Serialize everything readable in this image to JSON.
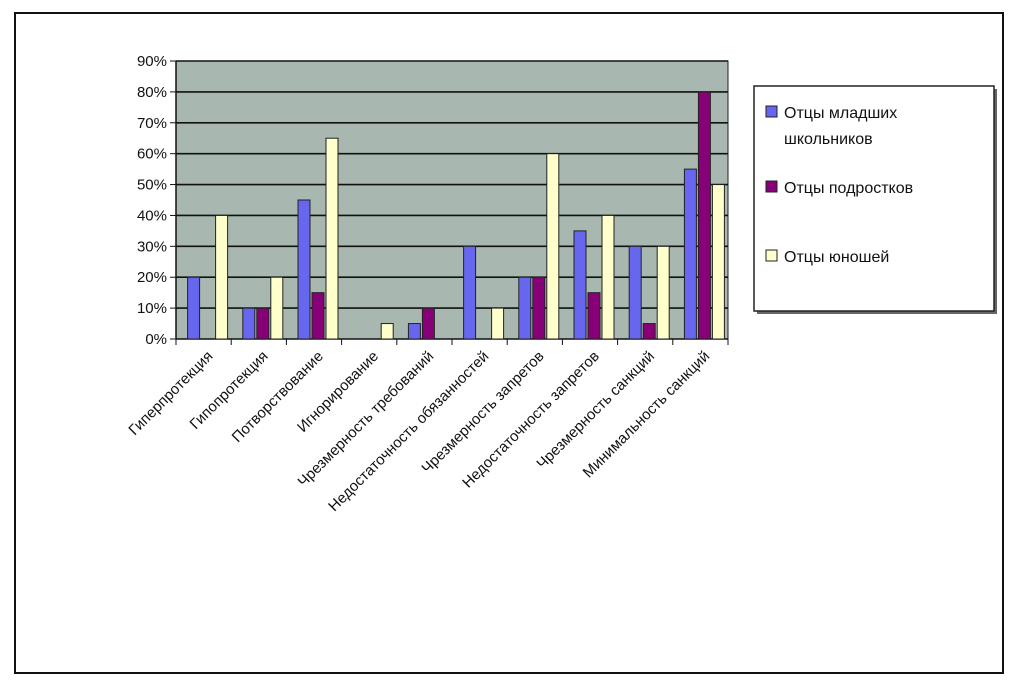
{
  "chart_data": {
    "type": "bar",
    "categories": [
      "Гиперпротекция",
      "Гипопротекция",
      "Потворствование",
      "Игнорирование",
      "Чрезмерность требований",
      "Недостаточность обязанностей",
      "Чрезмерность запретов",
      "Недостаточность запретов",
      "Чрезмерность санкций",
      "Минимальность санкций"
    ],
    "series": [
      {
        "name": "Отцы младших школьников",
        "color": "#6666ee",
        "values": [
          20,
          10,
          45,
          0,
          5,
          30,
          20,
          35,
          30,
          55
        ]
      },
      {
        "name": "Отцы подростков",
        "color": "#880077",
        "values": [
          0,
          10,
          15,
          0,
          10,
          0,
          20,
          15,
          5,
          80
        ]
      },
      {
        "name": "Отцы юношей",
        "color": "#ffffcc",
        "values": [
          40,
          20,
          65,
          5,
          0,
          10,
          60,
          40,
          30,
          50
        ]
      }
    ],
    "ylim": [
      0,
      90
    ],
    "yticks": [
      "0%",
      "10%",
      "20%",
      "30%",
      "40%",
      "50%",
      "60%",
      "70%",
      "80%",
      "90%"
    ],
    "grid": true,
    "plot_background": "#a8b8b0",
    "legend_position": "right",
    "legend_lines": [
      [
        "Отцы младших",
        "школьников"
      ],
      [
        "Отцы подростков"
      ],
      [
        "Отцы юношей"
      ]
    ]
  }
}
